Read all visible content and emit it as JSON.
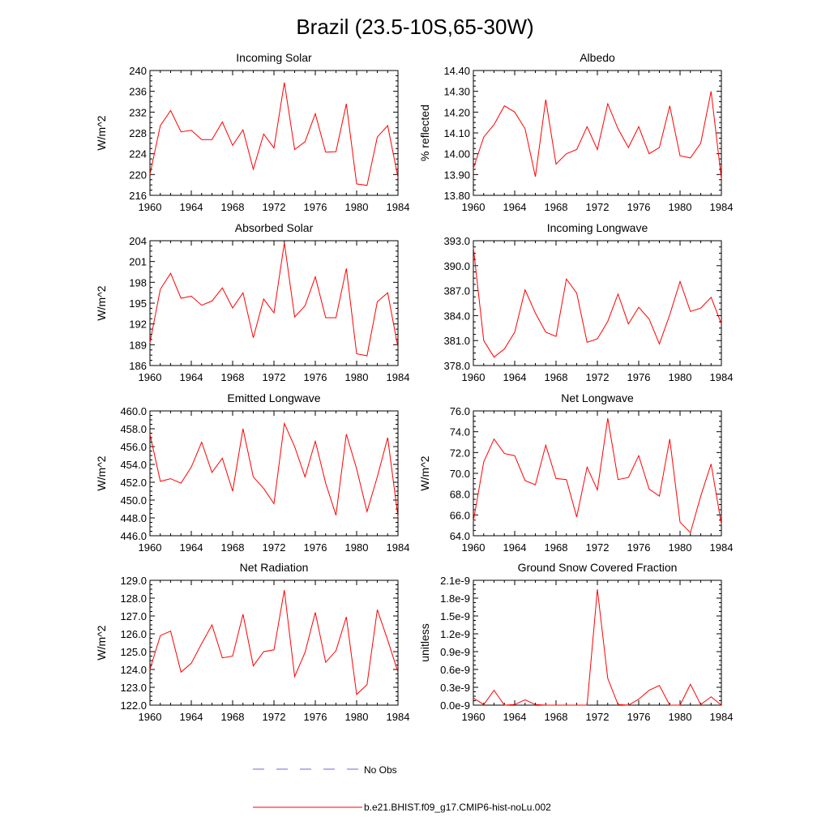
{
  "title": "Brazil (23.5-10S,65-30W)",
  "legend": [
    {
      "label": "No Obs",
      "color": "#6b6bd6",
      "style": "dashed"
    },
    {
      "label": "b.e21.BHIST.f09_g17.CMIP6-hist-noLu.002",
      "color": "#ff0000",
      "style": "solid"
    }
  ],
  "chart_data": [
    {
      "type": "line",
      "title": "Incoming Solar",
      "ylabel": "W/m^2",
      "xlim": [
        1960,
        1984
      ],
      "xticks": [
        1960,
        1964,
        1968,
        1972,
        1976,
        1980,
        1984
      ],
      "ylim": [
        216,
        240
      ],
      "yticks": [
        "216",
        "220",
        "224",
        "228",
        "232",
        "236",
        "240"
      ],
      "yaxis_side": "left",
      "color": "#ff0000",
      "x": [
        1960,
        1961,
        1962,
        1963,
        1964,
        1965,
        1966,
        1967,
        1968,
        1969,
        1970,
        1971,
        1972,
        1973,
        1974,
        1975,
        1976,
        1977,
        1978,
        1979,
        1980,
        1981,
        1982,
        1983,
        1984
      ],
      "values": [
        220.0,
        229.4,
        232.3,
        228.2,
        228.5,
        226.7,
        226.7,
        230.1,
        225.6,
        228.6,
        221.0,
        227.8,
        225.1,
        237.7,
        224.8,
        226.3,
        231.7,
        224.3,
        224.4,
        233.6,
        218.2,
        217.9,
        227.2,
        229.4,
        219.4
      ]
    },
    {
      "type": "line",
      "title": "Albedo",
      "ylabel": "% reflected",
      "xlim": [
        1960,
        1984
      ],
      "xticks": [
        1960,
        1964,
        1968,
        1972,
        1976,
        1980,
        1984
      ],
      "ylim": [
        13.8,
        14.4
      ],
      "yticks": [
        "13.80",
        "13.90",
        "14.00",
        "14.10",
        "14.20",
        "14.30",
        "14.40"
      ],
      "yaxis_side": "left",
      "color": "#ff0000",
      "x": [
        1960,
        1961,
        1962,
        1963,
        1964,
        1965,
        1966,
        1967,
        1968,
        1969,
        1970,
        1971,
        1972,
        1973,
        1974,
        1975,
        1976,
        1977,
        1978,
        1979,
        1980,
        1981,
        1982,
        1983,
        1984
      ],
      "values": [
        13.93,
        14.08,
        14.14,
        14.23,
        14.2,
        14.12,
        13.89,
        14.26,
        13.95,
        14.0,
        14.02,
        14.13,
        14.02,
        14.24,
        14.12,
        14.03,
        14.13,
        14.0,
        14.03,
        14.23,
        13.99,
        13.98,
        14.05,
        14.3,
        13.88
      ]
    },
    {
      "type": "line",
      "title": "Absorbed Solar",
      "ylabel": "W/m^2",
      "xlim": [
        1960,
        1984
      ],
      "xticks": [
        1960,
        1964,
        1968,
        1972,
        1976,
        1980,
        1984
      ],
      "ylim": [
        186,
        204
      ],
      "yticks": [
        "186",
        "189",
        "192",
        "195",
        "198",
        "201",
        "204"
      ],
      "yaxis_side": "left",
      "color": "#ff0000",
      "x": [
        1960,
        1961,
        1962,
        1963,
        1964,
        1965,
        1966,
        1967,
        1968,
        1969,
        1970,
        1971,
        1972,
        1973,
        1974,
        1975,
        1976,
        1977,
        1978,
        1979,
        1980,
        1981,
        1982,
        1983,
        1984
      ],
      "values": [
        189.3,
        197.0,
        199.3,
        195.7,
        196.0,
        194.7,
        195.3,
        197.2,
        194.3,
        196.5,
        190.0,
        195.6,
        193.6,
        203.7,
        193.0,
        194.6,
        198.8,
        192.9,
        192.9,
        200.0,
        187.7,
        187.4,
        195.2,
        196.5,
        188.6
      ]
    },
    {
      "type": "line",
      "title": "Incoming Longwave",
      "ylabel": "",
      "xlim": [
        1960,
        1984
      ],
      "xticks": [
        1960,
        1964,
        1968,
        1972,
        1976,
        1980,
        1984
      ],
      "ylim": [
        378,
        393
      ],
      "yticks": [
        "378.0",
        "381.0",
        "384.0",
        "387.0",
        "390.0",
        "393.0"
      ],
      "yaxis_side": "left",
      "color": "#ff0000",
      "x": [
        1960,
        1961,
        1962,
        1963,
        1964,
        1965,
        1966,
        1967,
        1968,
        1969,
        1970,
        1971,
        1972,
        1973,
        1974,
        1975,
        1976,
        1977,
        1978,
        1979,
        1980,
        1981,
        1982,
        1983,
        1984
      ],
      "values": [
        392.2,
        381.0,
        379.0,
        380.0,
        382.0,
        387.1,
        384.3,
        382.0,
        381.5,
        388.4,
        386.7,
        380.8,
        381.2,
        383.3,
        386.6,
        383.0,
        385.0,
        383.6,
        380.6,
        384.1,
        388.1,
        384.5,
        384.9,
        386.2,
        383.0
      ]
    },
    {
      "type": "line",
      "title": "Emitted Longwave",
      "ylabel": "W/m^2",
      "xlim": [
        1960,
        1984
      ],
      "xticks": [
        1960,
        1964,
        1968,
        1972,
        1976,
        1980,
        1984
      ],
      "ylim": [
        446,
        460
      ],
      "yticks": [
        "446.0",
        "448.0",
        "450.0",
        "452.0",
        "454.0",
        "456.0",
        "458.0",
        "460.0"
      ],
      "yaxis_side": "left",
      "color": "#ff0000",
      "x": [
        1960,
        1961,
        1962,
        1963,
        1964,
        1965,
        1966,
        1967,
        1968,
        1969,
        1970,
        1971,
        1972,
        1973,
        1974,
        1975,
        1976,
        1977,
        1978,
        1979,
        1980,
        1981,
        1982,
        1983,
        1984
      ],
      "values": [
        457.4,
        452.1,
        452.4,
        451.9,
        453.7,
        456.5,
        453.1,
        454.7,
        451.0,
        458.0,
        452.6,
        451.3,
        449.6,
        458.6,
        456.0,
        452.6,
        456.6,
        451.9,
        448.3,
        457.4,
        453.5,
        448.7,
        452.6,
        457.0,
        448.1
      ]
    },
    {
      "type": "line",
      "title": "Net Longwave",
      "ylabel": "W/m^2",
      "xlim": [
        1960,
        1984
      ],
      "xticks": [
        1960,
        1964,
        1968,
        1972,
        1976,
        1980,
        1984
      ],
      "ylim": [
        64,
        76
      ],
      "yticks": [
        "64.0",
        "66.0",
        "68.0",
        "70.0",
        "72.0",
        "74.0",
        "76.0"
      ],
      "yaxis_side": "left",
      "color": "#ff0000",
      "x": [
        1960,
        1961,
        1962,
        1963,
        1964,
        1965,
        1966,
        1967,
        1968,
        1969,
        1970,
        1971,
        1972,
        1973,
        1974,
        1975,
        1976,
        1977,
        1978,
        1979,
        1980,
        1981,
        1982,
        1983,
        1984
      ],
      "values": [
        65.4,
        71.1,
        73.3,
        71.9,
        71.7,
        69.3,
        68.9,
        72.7,
        69.5,
        69.4,
        65.8,
        70.6,
        68.4,
        75.3,
        69.4,
        69.6,
        71.7,
        68.5,
        67.8,
        73.3,
        65.3,
        64.3,
        67.8,
        70.9,
        65.1
      ]
    },
    {
      "type": "line",
      "title": "Net Radiation",
      "ylabel": "W/m^2",
      "xlim": [
        1960,
        1984
      ],
      "xticks": [
        1960,
        1964,
        1968,
        1972,
        1976,
        1980,
        1984
      ],
      "ylim": [
        122,
        129
      ],
      "yticks": [
        "122.0",
        "123.0",
        "124.0",
        "125.0",
        "126.0",
        "127.0",
        "128.0",
        "129.0"
      ],
      "yaxis_side": "left",
      "color": "#ff0000",
      "x": [
        1960,
        1961,
        1962,
        1963,
        1964,
        1965,
        1966,
        1967,
        1968,
        1969,
        1970,
        1971,
        1972,
        1973,
        1974,
        1975,
        1976,
        1977,
        1978,
        1979,
        1980,
        1981,
        1982,
        1983,
        1984
      ],
      "values": [
        124.0,
        125.9,
        126.15,
        123.85,
        124.35,
        125.45,
        126.5,
        124.65,
        124.75,
        127.1,
        124.2,
        125.0,
        125.1,
        128.45,
        123.6,
        124.95,
        127.2,
        124.4,
        125.05,
        126.95,
        122.6,
        123.15,
        127.35,
        125.65,
        123.85
      ]
    },
    {
      "type": "line",
      "title": "Ground Snow Covered Fraction",
      "ylabel": "unitless",
      "xlim": [
        1960,
        1984
      ],
      "xticks": [
        1960,
        1964,
        1968,
        1972,
        1976,
        1980,
        1984
      ],
      "ylim": [
        0,
        2.1e-09
      ],
      "yticks": [
        "0.0e-9",
        "0.3e-9",
        "0.6e-9",
        "0.9e-9",
        "1.2e-9",
        "1.5e-9",
        "1.8e-9",
        "2.1e-9"
      ],
      "yaxis_side": "left",
      "color": "#ff0000",
      "x": [
        1960,
        1961,
        1962,
        1963,
        1964,
        1965,
        1966,
        1967,
        1968,
        1969,
        1970,
        1971,
        1972,
        1973,
        1974,
        1975,
        1976,
        1977,
        1978,
        1979,
        1980,
        1981,
        1982,
        1983,
        1984
      ],
      "values": [
        1.2e-10,
        1e-11,
        2.5e-10,
        0,
        1e-11,
        9e-11,
        1e-11,
        0,
        0,
        0,
        0,
        0,
        1.95e-09,
        4.5e-10,
        1e-11,
        0,
        1e-10,
        2.5e-10,
        3.3e-10,
        0,
        0,
        3.5e-10,
        1e-11,
        1.4e-10,
        0
      ]
    }
  ]
}
